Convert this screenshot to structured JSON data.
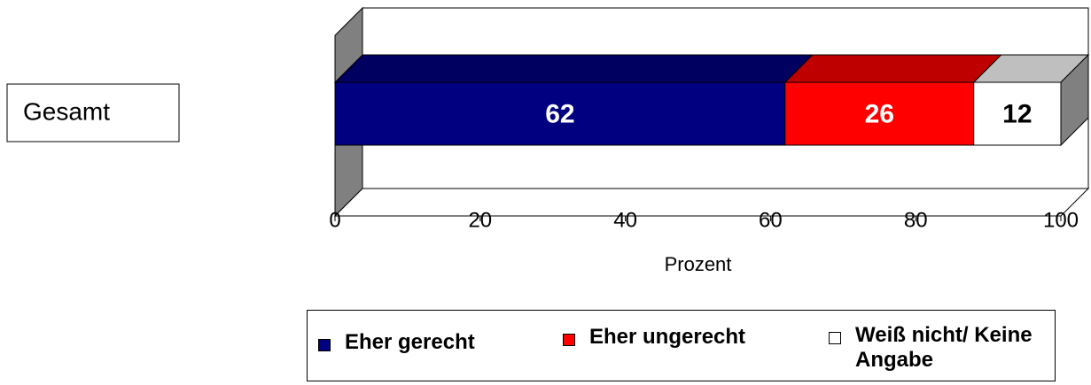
{
  "chart_data": {
    "type": "stacked_bar_3d",
    "orientation": "horizontal",
    "categories": [
      "Gesamt"
    ],
    "series": [
      {
        "name": "Eher gerecht",
        "color": "#000080",
        "values": [
          62
        ]
      },
      {
        "name": "Eher ungerecht",
        "color": "#ff0000",
        "values": [
          26
        ]
      },
      {
        "name": "Weiß nicht/ Keine Angabe",
        "color": "#ffffff",
        "values": [
          12
        ]
      }
    ],
    "xlim": [
      0,
      100
    ],
    "xticks": [
      0,
      20,
      40,
      60,
      80,
      100
    ],
    "xlabel": "Prozent",
    "legend": "bottom"
  }
}
